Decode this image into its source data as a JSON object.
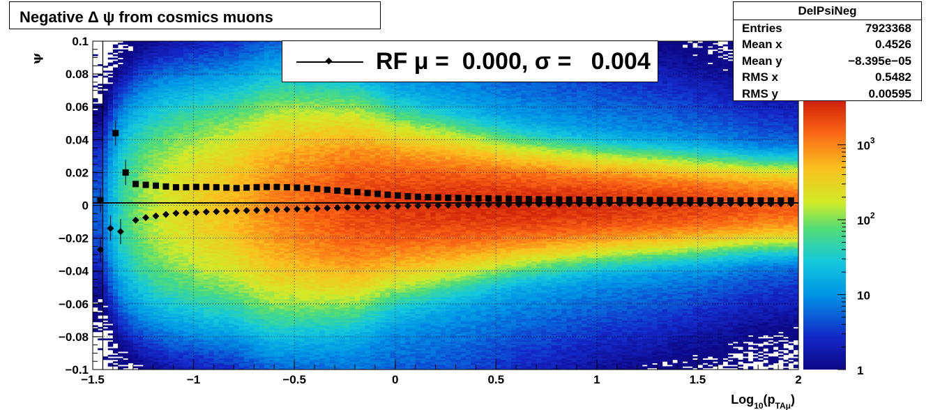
{
  "title": "Negative Δ ψ from cosmics muons",
  "stats": {
    "name": "DelPsiNeg",
    "rows": [
      {
        "key": "Entries",
        "value": "7923368"
      },
      {
        "key": "Mean x",
        "value": "0.4526"
      },
      {
        "key": "Mean y",
        "value": "−8.395e−05"
      },
      {
        "key": "RMS x",
        "value": "0.5482"
      },
      {
        "key": "RMS y",
        "value": "0.00595"
      }
    ]
  },
  "legend": {
    "label": "RF μ =  0.000, σ =   0.004"
  },
  "chart_data": {
    "type": "heatmap",
    "title": "Negative Δ ψ from cosmics muons",
    "xlabel": "Log10(pTAμ)",
    "ylabel": "ψ",
    "xlim": [
      -1.5,
      2
    ],
    "ylim": [
      -0.1,
      0.1
    ],
    "xticks": [
      -1.5,
      -1,
      -0.5,
      0,
      0.5,
      1,
      1.5,
      2
    ],
    "xtick_labels": [
      "−1.5",
      "−1",
      "−0.5",
      "0",
      "0.5",
      "1",
      "1.5",
      "2"
    ],
    "yticks": [
      -0.1,
      -0.08,
      -0.06,
      -0.04,
      -0.02,
      0,
      0.02,
      0.04,
      0.06,
      0.08,
      0.1
    ],
    "ytick_labels": [
      "−0.1",
      "−0.08",
      "−0.06",
      "−0.04",
      "−0.02",
      "0",
      "0.02",
      "0.04",
      "0.06",
      "0.08",
      "0.1"
    ],
    "grid": true,
    "colorbar": {
      "scale": "log",
      "range": [
        1,
        4000
      ],
      "ticks": [
        1,
        10,
        100,
        1000
      ],
      "tick_labels": [
        "1",
        "10",
        "10^2",
        "10^3"
      ]
    },
    "density_profile": {
      "x": [
        -1.45,
        -1.4,
        -1.3,
        -1.2,
        -1.0,
        -0.8,
        -0.6,
        -0.4,
        -0.2,
        0.0,
        0.3,
        0.6,
        1.0,
        1.4,
        1.8,
        2.0
      ],
      "peak_counts": [
        5,
        20,
        80,
        150,
        300,
        500,
        1000,
        1500,
        2200,
        2600,
        3000,
        3200,
        3000,
        2500,
        1800,
        1500
      ],
      "sigma": [
        0.03,
        0.03,
        0.03,
        0.03,
        0.029,
        0.028,
        0.028,
        0.026,
        0.024,
        0.02,
        0.017,
        0.014,
        0.012,
        0.011,
        0.01,
        0.01
      ]
    },
    "series": [
      {
        "marker": "square",
        "x": [
          -1.462,
          -1.387,
          -1.337,
          -1.287,
          -1.237,
          -1.187,
          -1.137,
          -1.087,
          -1.037,
          -0.987,
          -0.937,
          -0.887,
          -0.837,
          -0.787,
          -0.737,
          -0.687,
          -0.637,
          -0.587,
          -0.537,
          -0.487,
          -0.437,
          -0.387,
          -0.337,
          -0.287,
          -0.237,
          -0.187,
          -0.137,
          -0.087,
          -0.037,
          0.013,
          0.063,
          0.113,
          0.163,
          0.213,
          0.263,
          0.313,
          0.363,
          0.413,
          0.463,
          0.513,
          0.563,
          0.613,
          0.663,
          0.713,
          0.763,
          0.813,
          0.863,
          0.913,
          0.963,
          1.013,
          1.063,
          1.113,
          1.163,
          1.213,
          1.263,
          1.313,
          1.363,
          1.413,
          1.463,
          1.513,
          1.563,
          1.613,
          1.663,
          1.713,
          1.763,
          1.813,
          1.863,
          1.913,
          1.963
        ],
        "y": [
          0.003,
          0.044,
          0.02,
          0.013,
          0.0125,
          0.012,
          0.0115,
          0.011,
          0.011,
          0.0112,
          0.0112,
          0.011,
          0.0108,
          0.0105,
          0.0108,
          0.011,
          0.0112,
          0.0112,
          0.011,
          0.0108,
          0.0105,
          0.01,
          0.0095,
          0.009,
          0.0085,
          0.008,
          0.0075,
          0.007,
          0.0065,
          0.006,
          0.0055,
          0.0052,
          0.005,
          0.0048,
          0.0046,
          0.0045,
          0.0044,
          0.0043,
          0.0042,
          0.0041,
          0.004,
          0.0039,
          0.0038,
          0.0037,
          0.0036,
          0.0036,
          0.0035,
          0.0035,
          0.0034,
          0.0034,
          0.0034,
          0.0033,
          0.0033,
          0.0033,
          0.0032,
          0.0032,
          0.0032,
          0.0031,
          0.0031,
          0.0031,
          0.003,
          0.003,
          0.003,
          0.003,
          0.003,
          0.003,
          0.003,
          0.003,
          0.003
        ]
      },
      {
        "marker": "diamond",
        "x": [
          -1.462,
          -1.412,
          -1.362,
          -1.287,
          -1.237,
          -1.187,
          -1.137,
          -1.087,
          -1.037,
          -0.987,
          -0.937,
          -0.887,
          -0.837,
          -0.787,
          -0.737,
          -0.687,
          -0.637,
          -0.587,
          -0.537,
          -0.487,
          -0.437,
          -0.387,
          -0.337,
          -0.287,
          -0.237,
          -0.187,
          -0.137,
          -0.087,
          -0.037,
          0.013,
          0.063,
          0.113,
          0.163,
          0.213,
          0.263,
          0.313,
          0.363,
          0.413,
          0.463,
          0.513,
          0.563,
          0.613,
          0.663,
          0.713,
          0.763,
          0.813,
          0.863,
          0.913,
          0.963,
          1.013,
          1.063,
          1.113,
          1.163,
          1.213,
          1.263,
          1.313,
          1.363,
          1.413,
          1.463,
          1.513,
          1.563,
          1.613,
          1.663,
          1.713,
          1.763,
          1.813,
          1.863,
          1.913,
          1.963
        ],
        "y": [
          -0.027,
          -0.014,
          -0.016,
          -0.009,
          -0.0075,
          -0.0065,
          -0.0055,
          -0.0048,
          -0.0045,
          -0.0043,
          -0.004,
          -0.0038,
          -0.0035,
          -0.0033,
          -0.0032,
          -0.003,
          -0.0028,
          -0.0026,
          -0.0025,
          -0.0023,
          -0.0021,
          -0.0019,
          -0.0017,
          -0.0015,
          -0.0013,
          -0.0011,
          -0.0009,
          -0.0007,
          -0.0005,
          -0.0004,
          -0.0003,
          -0.0002,
          -0.0001,
          0.0,
          0.0001,
          0.0002,
          0.0003,
          0.0004,
          0.0005,
          0.0005,
          0.0006,
          0.0006,
          0.0007,
          0.0007,
          0.0008,
          0.0008,
          0.0008,
          0.0009,
          0.0009,
          0.0009,
          0.001,
          0.001,
          0.001,
          0.001,
          0.001,
          0.001,
          0.001,
          0.001,
          0.001,
          0.001,
          0.001,
          0.001,
          0.001,
          0.001,
          0.001,
          0.001,
          0.001,
          0.001,
          0.001
        ]
      }
    ],
    "fit_line": {
      "y": 0.0015
    }
  }
}
